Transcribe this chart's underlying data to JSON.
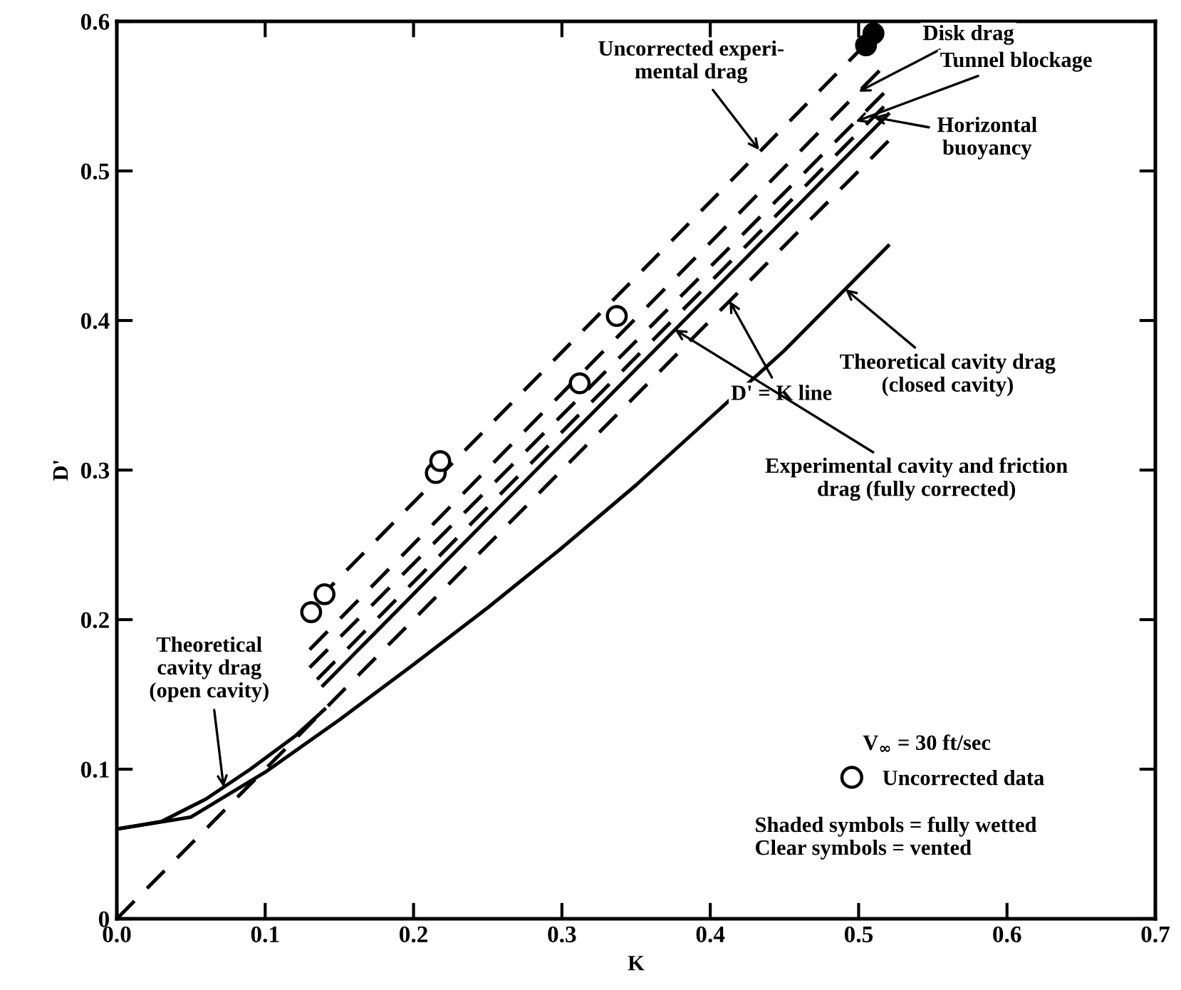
{
  "chart_data": {
    "type": "line",
    "xlabel": "K",
    "ylabel": "D'",
    "xlim": [
      0,
      0.7
    ],
    "ylim": [
      0,
      0.6
    ],
    "xticks": [
      {
        "value": 0,
        "label": "0.0"
      },
      0.1,
      0.2,
      0.3,
      0.4,
      0.5,
      0.6,
      0.7
    ],
    "yticks": [
      0,
      0.1,
      0.2,
      0.3,
      0.4,
      0.5,
      0.6
    ],
    "grid": false,
    "legend": "bottom right",
    "series": [
      {
        "color": "#000000",
        "line_style": "dashed",
        "marker": "none",
        "x": [
          0.135,
          0.505
        ],
        "values": [
          0.213,
          0.585
        ]
      },
      {
        "color": "#000000",
        "line_style": "dashed",
        "marker": "none",
        "x": [
          0.13,
          0.514
        ],
        "values": [
          0.18,
          0.567
        ]
      },
      {
        "color": "#000000",
        "line_style": "dashed",
        "marker": "none",
        "x": [
          0.13,
          0.517
        ],
        "values": [
          0.168,
          0.552
        ]
      },
      {
        "color": "#000000",
        "line_style": "dashed",
        "marker": "none",
        "x": [
          0.135,
          0.517
        ],
        "values": [
          0.16,
          0.543
        ]
      },
      {
        "color": "#000000",
        "line_style": "solid",
        "marker": "none",
        "x": [
          0.139,
          0.52
        ],
        "values": [
          0.156,
          0.538
        ]
      },
      {
        "color": "#000000",
        "line_style": "dashed",
        "marker": "none",
        "x": [
          0,
          0.52
        ],
        "values": [
          0,
          0.52
        ]
      },
      {
        "color": "#000000",
        "line_style": "solid",
        "marker": "none",
        "x": [
          0,
          0.05,
          0.1,
          0.15,
          0.2,
          0.25,
          0.3,
          0.35,
          0.4,
          0.45,
          0.52
        ],
        "values": [
          0.06,
          0.068,
          0.098,
          0.133,
          0.17,
          0.208,
          0.248,
          0.29,
          0.335,
          0.38,
          0.45
        ]
      },
      {
        "color": "#000000",
        "line_style": "solid",
        "marker": "none",
        "x": [
          0,
          0.03,
          0.06,
          0.09,
          0.12,
          0.14
        ],
        "values": [
          0.06,
          0.065,
          0.08,
          0.1,
          0.122,
          0.14
        ]
      },
      {
        "type": "scatter",
        "name": "Uncorrected data",
        "color": "#000000",
        "marker": "circle",
        "x": [
          0.131,
          0.14,
          0.215,
          0.218,
          0.312,
          0.337,
          0.505,
          0.51
        ],
        "values": [
          0.205,
          0.217,
          0.298,
          0.306,
          0.358,
          0.403,
          0.584,
          0.592
        ],
        "colors": [
          "#ffffff",
          "#ffffff",
          "#ffffff",
          "#ffffff",
          "#ffffff",
          "#ffffff",
          "#000000",
          "#000000"
        ]
      }
    ],
    "annotations": [
      {
        "text": "Uncorrected experi-\nmental drag",
        "x": 0.433,
        "y": 0.514
      },
      {
        "text": "Disk drag",
        "x": 0.5,
        "y": 0.553
      },
      {
        "text": "Tunnel blockage",
        "x": 0.498,
        "y": 0.533
      },
      {
        "text": "Horizontal\nbuoyancy",
        "x": 0.51,
        "y": 0.536
      },
      {
        "text": "Theoretical cavity drag\n(closed cavity)",
        "x": 0.491,
        "y": 0.421
      },
      {
        "text": "D' = K line",
        "x": 0.413,
        "y": 0.413
      },
      {
        "text": "Experimental cavity and friction\ndrag (fully corrected)",
        "x": 0.376,
        "y": 0.394
      },
      {
        "text": "Theoretical\ncavity drag\n(open cavity)",
        "x": 0.072,
        "y": 0.088
      },
      "V$_{∞}$ = 30 ft/sec",
      "Shaded symbols = fully wetted\nClear symbols = vented"
    ]
  }
}
